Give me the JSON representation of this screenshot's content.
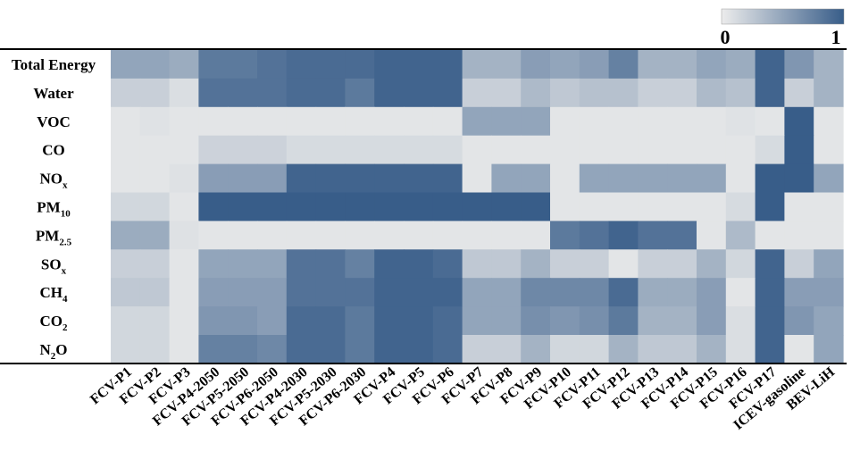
{
  "chart_data": {
    "type": "heatmap",
    "rows": [
      {
        "label": "Total Energy",
        "base": "Total Energy",
        "sub": ""
      },
      {
        "label": "Water",
        "base": "Water",
        "sub": ""
      },
      {
        "label": "VOC",
        "base": "VOC",
        "sub": ""
      },
      {
        "label": "CO",
        "base": "CO",
        "sub": ""
      },
      {
        "label": "NOx",
        "base": "NO",
        "sub": "x"
      },
      {
        "label": "PM10",
        "base": "PM",
        "sub": "10"
      },
      {
        "label": "PM2.5",
        "base": "PM",
        "sub": "2.5"
      },
      {
        "label": "SOx",
        "base": "SO",
        "sub": "x"
      },
      {
        "label": "CH4",
        "base": "CH",
        "sub": "4"
      },
      {
        "label": "CO2",
        "base": "CO",
        "sub": "2"
      },
      {
        "label": "N2O",
        "base": "N",
        "sub": "2",
        "tail": "O"
      }
    ],
    "columns": [
      "FCV-P1",
      "FCV-P2",
      "FCV-P3",
      "FCV-P4-2050",
      "FCV-P5-2050",
      "FCV-P6-2050",
      "FCV-P4-2030",
      "FCV-P5-2030",
      "FCV-P6-2030",
      "FCV-P4",
      "FCV-P5",
      "FCV-P6",
      "FCV-P7",
      "FCV-P8",
      "FCV-P9",
      "FCV-P10",
      "FCV-P11",
      "FCV-P12",
      "FCV-P13",
      "FCV-P14",
      "FCV-P15",
      "FCV-P16",
      "FCV-P17",
      "ICEV-gasoline",
      "BEV-LiH"
    ],
    "values": [
      [
        0.5,
        0.5,
        0.45,
        0.8,
        0.8,
        0.85,
        0.9,
        0.9,
        0.9,
        0.95,
        0.95,
        0.95,
        0.4,
        0.4,
        0.55,
        0.5,
        0.55,
        0.75,
        0.4,
        0.4,
        0.5,
        0.45,
        0.95,
        0.6,
        0.4
      ],
      [
        0.2,
        0.2,
        0.1,
        0.85,
        0.85,
        0.85,
        0.9,
        0.9,
        0.8,
        0.95,
        0.95,
        0.95,
        0.2,
        0.2,
        0.35,
        0.25,
        0.3,
        0.3,
        0.2,
        0.2,
        0.35,
        0.3,
        0.95,
        0.2,
        0.4
      ],
      [
        0.05,
        0.07,
        0.05,
        0.05,
        0.05,
        0.05,
        0.05,
        0.05,
        0.05,
        0.05,
        0.05,
        0.05,
        0.5,
        0.5,
        0.5,
        0.05,
        0.05,
        0.05,
        0.05,
        0.05,
        0.05,
        0.07,
        0.05,
        1.0,
        0.05
      ],
      [
        0.05,
        0.05,
        0.05,
        0.18,
        0.18,
        0.18,
        0.12,
        0.12,
        0.12,
        0.12,
        0.12,
        0.12,
        0.05,
        0.05,
        0.05,
        0.05,
        0.05,
        0.05,
        0.05,
        0.05,
        0.05,
        0.05,
        0.12,
        1.0,
        0.05
      ],
      [
        0.05,
        0.05,
        0.08,
        0.55,
        0.55,
        0.55,
        0.95,
        0.95,
        0.95,
        0.95,
        0.95,
        0.95,
        0.05,
        0.5,
        0.5,
        0.05,
        0.5,
        0.5,
        0.5,
        0.5,
        0.5,
        0.05,
        1.0,
        1.0,
        0.5
      ],
      [
        0.15,
        0.15,
        0.05,
        1.0,
        1.0,
        1.0,
        1.0,
        1.0,
        1.0,
        1.0,
        1.0,
        1.0,
        1.0,
        1.0,
        1.0,
        0.05,
        0.05,
        0.05,
        0.05,
        0.05,
        0.05,
        0.12,
        1.0,
        0.05,
        0.05
      ],
      [
        0.45,
        0.45,
        0.08,
        0.05,
        0.05,
        0.05,
        0.05,
        0.05,
        0.05,
        0.05,
        0.05,
        0.05,
        0.05,
        0.05,
        0.05,
        0.8,
        0.85,
        0.95,
        0.85,
        0.85,
        0.05,
        0.35,
        0.05,
        0.05,
        0.05
      ],
      [
        0.2,
        0.2,
        0.05,
        0.5,
        0.5,
        0.5,
        0.85,
        0.85,
        0.75,
        0.95,
        0.95,
        0.9,
        0.25,
        0.25,
        0.4,
        0.2,
        0.2,
        0.05,
        0.2,
        0.2,
        0.4,
        0.15,
        0.95,
        0.2,
        0.5
      ],
      [
        0.25,
        0.25,
        0.05,
        0.55,
        0.55,
        0.55,
        0.85,
        0.85,
        0.85,
        0.95,
        0.95,
        0.95,
        0.5,
        0.5,
        0.7,
        0.7,
        0.7,
        0.9,
        0.45,
        0.45,
        0.55,
        0.05,
        0.95,
        0.55,
        0.55
      ],
      [
        0.15,
        0.15,
        0.05,
        0.6,
        0.6,
        0.55,
        0.9,
        0.9,
        0.8,
        0.95,
        0.95,
        0.9,
        0.5,
        0.5,
        0.65,
        0.6,
        0.65,
        0.8,
        0.4,
        0.4,
        0.55,
        0.1,
        0.95,
        0.6,
        0.5
      ],
      [
        0.15,
        0.15,
        0.05,
        0.75,
        0.75,
        0.7,
        0.9,
        0.9,
        0.8,
        0.95,
        0.95,
        0.9,
        0.2,
        0.2,
        0.4,
        0.15,
        0.15,
        0.4,
        0.25,
        0.25,
        0.4,
        0.1,
        0.95,
        0.05,
        0.5
      ]
    ],
    "vmin": 0,
    "vmax": 1,
    "colormap": [
      "#ececec",
      "#385d89"
    ],
    "colorbar": {
      "tick_min": "0",
      "tick_max": "1"
    }
  }
}
